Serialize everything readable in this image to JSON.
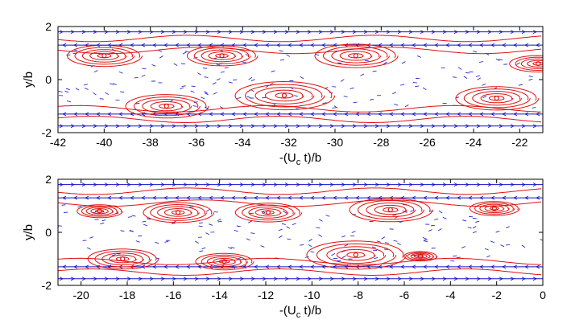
{
  "colors": {
    "background": "#ffffff",
    "axes": "#000000",
    "streamline": "#e01010",
    "vector": "#1010c8"
  },
  "chart_data": [
    {
      "type": "streamline",
      "xlabel_main": "-(U",
      "xlabel_sub": "c",
      "xlabel_tail": " t)/b",
      "ylabel": "y/b",
      "xlim": [
        -42,
        -21
      ],
      "ylim": [
        -2,
        2
      ],
      "xticks": [
        -42,
        -40,
        -38,
        -36,
        -34,
        -32,
        -30,
        -28,
        -26,
        -24,
        -22
      ],
      "yticks": [
        -2,
        0,
        2
      ],
      "grid": false,
      "vortices": [
        {
          "x": -40.0,
          "y": 0.9,
          "r": 0.9,
          "sense": 1
        },
        {
          "x": -37.3,
          "y": -1.0,
          "r": 1.0,
          "sense": -1
        },
        {
          "x": -34.9,
          "y": 0.9,
          "r": 0.85,
          "sense": 1
        },
        {
          "x": -32.2,
          "y": -0.6,
          "r": 1.2,
          "sense": -1
        },
        {
          "x": -29.1,
          "y": 0.9,
          "r": 1.0,
          "sense": 1
        },
        {
          "x": -23.0,
          "y": -0.7,
          "r": 1.0,
          "sense": -1
        },
        {
          "x": -21.2,
          "y": 0.6,
          "r": 0.7,
          "sense": 1
        }
      ]
    },
    {
      "type": "streamline",
      "xlabel_main": "-(U",
      "xlabel_sub": "c",
      "xlabel_tail": " t)/b",
      "ylabel": "y/b",
      "xlim": [
        -21,
        0
      ],
      "ylim": [
        -2,
        2
      ],
      "xticks": [
        -20,
        -18,
        -16,
        -14,
        -12,
        -10,
        -8,
        -6,
        -4,
        -2,
        0
      ],
      "yticks": [
        -2,
        0,
        2
      ],
      "grid": false,
      "vortices": [
        {
          "x": -19.2,
          "y": 0.8,
          "r": 0.55,
          "sense": 1
        },
        {
          "x": -18.2,
          "y": -1.0,
          "r": 0.85,
          "sense": -1
        },
        {
          "x": -15.8,
          "y": 0.75,
          "r": 0.85,
          "sense": 1
        },
        {
          "x": -13.8,
          "y": -1.1,
          "r": 0.7,
          "sense": -1
        },
        {
          "x": -11.9,
          "y": 0.75,
          "r": 0.8,
          "sense": 1
        },
        {
          "x": -8.1,
          "y": -0.85,
          "r": 1.2,
          "sense": -1
        },
        {
          "x": -6.6,
          "y": 0.85,
          "r": 1.0,
          "sense": 1
        },
        {
          "x": -5.3,
          "y": -0.9,
          "r": 0.4,
          "sense": -1
        },
        {
          "x": -2.1,
          "y": 0.9,
          "r": 0.6,
          "sense": 1
        }
      ]
    }
  ]
}
